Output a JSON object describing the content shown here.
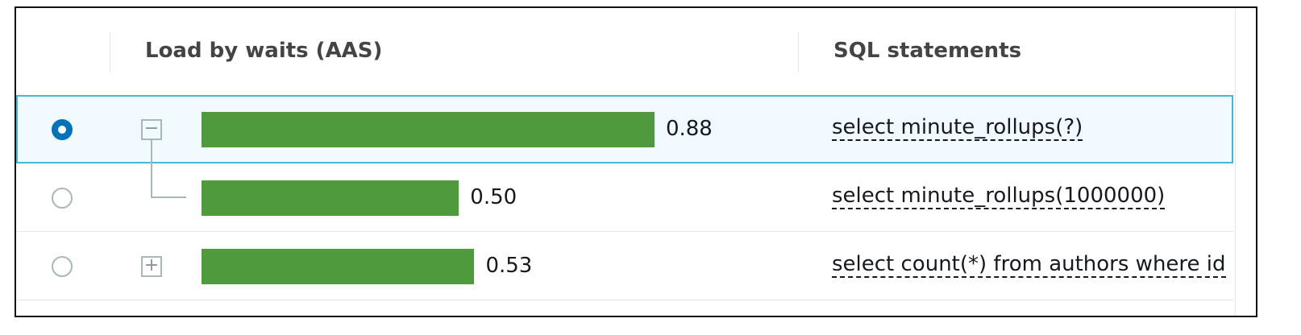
{
  "table": {
    "columns": [
      "Load by waits (AAS)",
      "SQL statements"
    ],
    "rows": [
      {
        "selected": true,
        "expander": "collapse",
        "child": false,
        "load": 0.88,
        "load_label": "0.88",
        "sql": "select minute_rollups(?)"
      },
      {
        "selected": false,
        "expander": null,
        "child": true,
        "load": 0.5,
        "load_label": "0.50",
        "sql": "select minute_rollups(1000000)"
      },
      {
        "selected": false,
        "expander": "expand",
        "child": false,
        "load": 0.53,
        "load_label": "0.53",
        "sql": "select count(*) from authors where id"
      }
    ],
    "bar_color": "#4f9a3c"
  }
}
